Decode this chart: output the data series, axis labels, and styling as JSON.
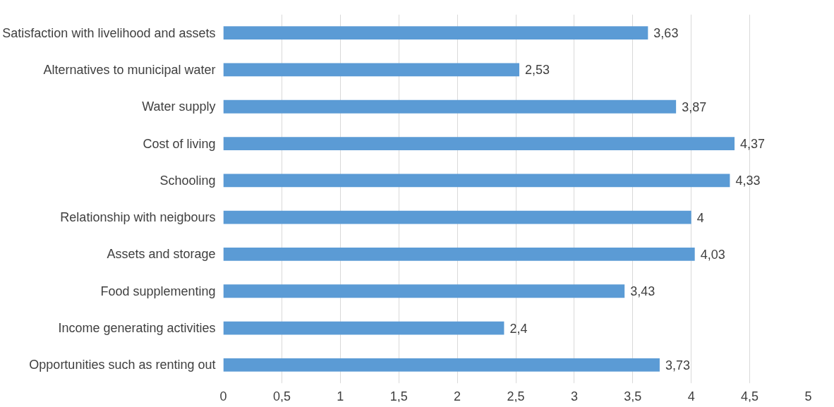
{
  "chart_data": {
    "type": "bar",
    "orientation": "horizontal",
    "categories": [
      "Satisfaction with livelihood and assets",
      "Alternatives to municipal water",
      "Water supply",
      "Cost of living",
      "Schooling",
      "Relationship with neigbours",
      "Assets and storage",
      "Food supplementing",
      "Income generating activities",
      "Opportunities such as renting out"
    ],
    "values": [
      3.63,
      2.53,
      3.87,
      4.37,
      4.33,
      4,
      4.03,
      3.43,
      2.4,
      3.73
    ],
    "value_labels": [
      "3,63",
      "2,53",
      "3,87",
      "4,37",
      "4,33",
      "4",
      "4,03",
      "3,43",
      "2,4",
      "3,73"
    ],
    "color": "#5b9bd5",
    "xlim": [
      0,
      5
    ],
    "xticks": [
      0,
      {
        "value": 0.5,
        "label": "0,5"
      },
      1,
      {
        "value": 1.5,
        "label": "1,5"
      },
      2,
      {
        "value": 2.5,
        "label": "2,5"
      },
      3,
      {
        "value": 3.5,
        "label": "3,5"
      },
      4,
      {
        "value": 4.5,
        "label": "4,5"
      },
      5
    ],
    "grid": "x"
  }
}
